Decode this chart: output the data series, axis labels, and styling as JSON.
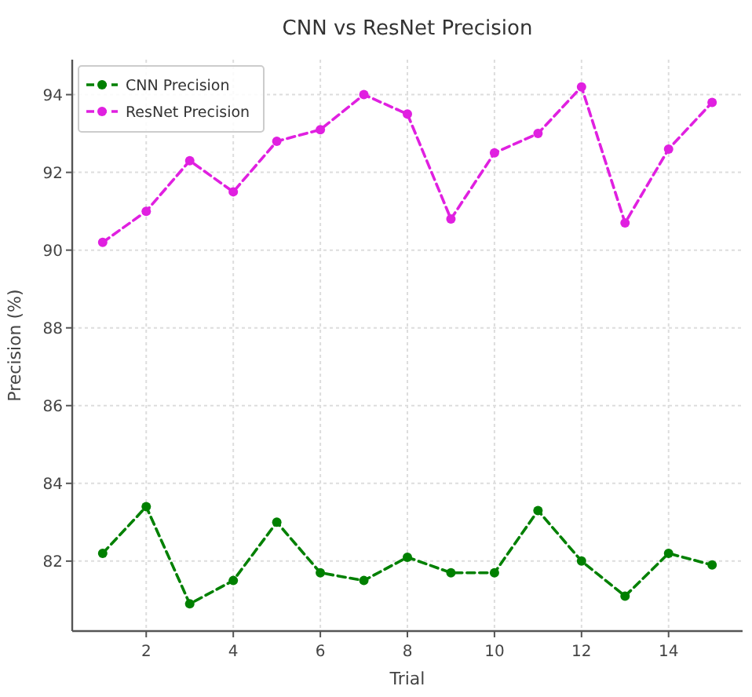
{
  "chart_data": {
    "type": "line",
    "title": "CNN vs ResNet Precision",
    "xlabel": "Trial",
    "ylabel": "Precision (%)",
    "x": [
      1,
      2,
      3,
      4,
      5,
      6,
      7,
      8,
      9,
      10,
      11,
      12,
      13,
      14,
      15
    ],
    "series": [
      {
        "name": "CNN Precision",
        "color": "#008000",
        "values": [
          82.2,
          83.4,
          80.9,
          81.5,
          83.0,
          81.7,
          81.5,
          82.1,
          81.7,
          81.7,
          83.3,
          82.0,
          81.1,
          82.2,
          81.9
        ]
      },
      {
        "name": "ResNet Precision",
        "color": "#e020e0",
        "values": [
          90.2,
          91.0,
          92.3,
          91.5,
          92.8,
          93.1,
          94.0,
          93.5,
          90.8,
          92.5,
          93.0,
          94.2,
          90.7,
          92.6,
          93.8
        ]
      }
    ],
    "xlim": [
      0.3,
      15.7
    ],
    "xticks": [
      2,
      4,
      6,
      8,
      10,
      12,
      14
    ],
    "ylim": [
      80.2,
      94.9
    ],
    "yticks": [
      82,
      84,
      86,
      88,
      90,
      92,
      94
    ],
    "grid": true,
    "legend": "top left",
    "marker": "circle",
    "line_style": "dashed"
  }
}
